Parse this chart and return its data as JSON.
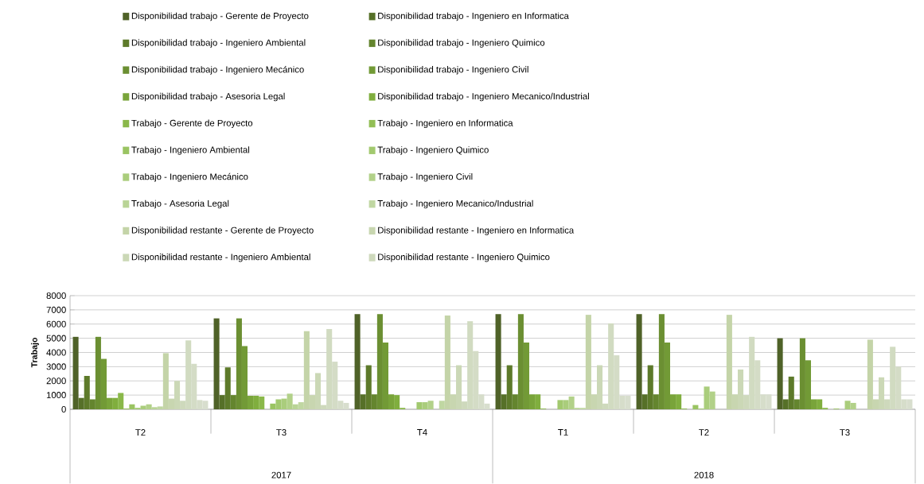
{
  "chart_data": {
    "type": "bar",
    "ylabel": "Trabajo",
    "categories": [
      "T2",
      "T3",
      "T4",
      "T1",
      "T2",
      "T3"
    ],
    "annotations": [
      "2017",
      "2018"
    ],
    "ylim": [
      0,
      8000
    ],
    "yticks": [
      0,
      1000,
      2000,
      3000,
      4000,
      5000,
      6000,
      7000,
      8000
    ],
    "grid": "y",
    "legend": "top",
    "series": [
      {
        "name": "Disponibilidad trabajo - Gerente de Proyecto",
        "color": "#4f6228",
        "values": [
          5100,
          6400,
          6700,
          6700,
          6700,
          5000
        ]
      },
      {
        "name": "Disponibilidad trabajo - Ingeniero en Informatica",
        "color": "#567028",
        "values": [
          800,
          1000,
          1050,
          1050,
          1050,
          700
        ]
      },
      {
        "name": "Disponibilidad trabajo - Ingeniero Ambiental",
        "color": "#5d7a2a",
        "values": [
          2350,
          2950,
          3100,
          3100,
          3100,
          2300
        ]
      },
      {
        "name": "Disponibilidad trabajo - Ingeniero Quimico",
        "color": "#64852e",
        "values": [
          700,
          1000,
          1050,
          1050,
          1050,
          700
        ]
      },
      {
        "name": "Disponibilidad trabajo - Ingeniero Mecánico",
        "color": "#6b8f32",
        "values": [
          5100,
          6400,
          6700,
          6700,
          6700,
          5000
        ]
      },
      {
        "name": "Disponibilidad trabajo - Ingeniero Civil",
        "color": "#729a36",
        "values": [
          3550,
          4450,
          4700,
          4700,
          4700,
          3450
        ]
      },
      {
        "name": "Disponibilidad trabajo - Asesoria Legal",
        "color": "#79a43a",
        "values": [
          800,
          950,
          1050,
          1050,
          1050,
          700
        ]
      },
      {
        "name": "Disponibilidad trabajo - Ingeniero Mecanico/Industrial",
        "color": "#80ae3e",
        "values": [
          800,
          950,
          1000,
          1050,
          1050,
          700
        ]
      },
      {
        "name": "Trabajo - Gerente de Proyecto",
        "color": "#8ab84a",
        "values": [
          1150,
          900,
          100,
          50,
          50,
          100
        ]
      },
      {
        "name": "Trabajo - Ingeniero en Informatica",
        "color": "#92be55",
        "values": [
          50,
          0,
          0,
          0,
          0,
          0
        ]
      },
      {
        "name": "Trabajo - Ingeniero Ambiental",
        "color": "#9ac462",
        "values": [
          350,
          400,
          0,
          0,
          300,
          50
        ]
      },
      {
        "name": "Trabajo - Ingeniero Quimico",
        "color": "#a2c96f",
        "values": [
          100,
          700,
          500,
          650,
          50,
          0
        ]
      },
      {
        "name": "Trabajo - Ingeniero Mecánico",
        "color": "#aacd7c",
        "values": [
          250,
          750,
          500,
          650,
          1600,
          600
        ]
      },
      {
        "name": "Trabajo - Ingeniero Civil",
        "color": "#b2d189",
        "values": [
          350,
          1100,
          600,
          900,
          1250,
          450
        ]
      },
      {
        "name": "Trabajo - Asesoria Legal",
        "color": "#b9d496",
        "values": [
          150,
          350,
          0,
          100,
          0,
          0
        ]
      },
      {
        "name": "Trabajo - Ingeniero Mecanico/Industrial",
        "color": "#c0d7a2",
        "values": [
          200,
          500,
          600,
          100,
          0,
          0
        ]
      },
      {
        "name": "Disponibilidad restante - Gerente de Proyecto",
        "color": "#c4d4a8",
        "values": [
          3950,
          5500,
          6600,
          6650,
          6650,
          4900
        ]
      },
      {
        "name": "Disponibilidad restante - Ingeniero en Informatica",
        "color": "#c8d6b0",
        "values": [
          750,
          1000,
          1050,
          1050,
          1050,
          700
        ]
      },
      {
        "name": "Disponibilidad restante - Ingeniero Ambiental",
        "color": "#cbd8b6",
        "values": [
          2000,
          2550,
          3100,
          3100,
          2800,
          2250
        ]
      },
      {
        "name": "Disponibilidad restante - Ingeniero Quimico",
        "color": "#ced9bc",
        "values": [
          600,
          300,
          550,
          400,
          1000,
          700
        ]
      },
      {
        "color": "#d1dbc1",
        "values": [
          4850,
          5650,
          6200,
          6050,
          5100,
          4400
        ]
      },
      {
        "color": "#d4dcc6",
        "values": [
          3200,
          3350,
          4100,
          3800,
          3450,
          3000
        ]
      },
      {
        "color": "#d6ddca",
        "values": [
          650,
          600,
          1050,
          950,
          1050,
          700
        ]
      },
      {
        "color": "#d8dece",
        "values": [
          600,
          450,
          400,
          950,
          1050,
          700
        ]
      }
    ]
  }
}
